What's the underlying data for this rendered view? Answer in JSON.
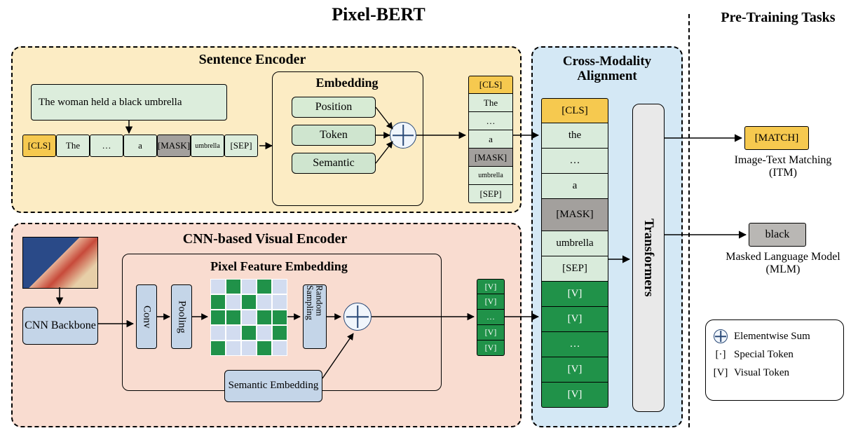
{
  "title": "Pixel-BERT",
  "pretrain_title": "Pre-Training Tasks",
  "colors": {
    "sentence_bg": "#fcecc4",
    "visual_bg": "#f9dcd0",
    "cross_bg": "#d4e8f5",
    "blue_block": "#c4d5e8",
    "light_green": "#dceddc",
    "mid_green": "#d9ebdb",
    "dark_green": "#209249",
    "cls": "#f6c94f",
    "mask": "#a3a09d",
    "match": "#f6c94f",
    "black_pred": "#b9b7b4",
    "grey_box": "#e6e6e6",
    "grid_bg": "#d2dcf0"
  },
  "sentence": {
    "title": "Sentence Encoder",
    "input_text": "The woman held a black umbrella",
    "tokens": [
      "[CLS]",
      "The",
      "…",
      "a",
      "[MASK]",
      "umbrella",
      "[SEP]"
    ],
    "embedding_title": "Embedding",
    "embedding_items": [
      "Position",
      "Token",
      "Semantic"
    ],
    "output_tokens": [
      "[CLS]",
      "The",
      "…",
      "a",
      "[MASK]",
      "umbrella",
      "[SEP]"
    ]
  },
  "visual": {
    "title": "CNN-based Visual Encoder",
    "cnn_label": "CNN Backbone",
    "conv": "Conv",
    "pool": "Pooling",
    "random_sampling": "Random Sampling",
    "pixel_title": "Pixel Feature Embedding",
    "semantic": "Semantic Embedding",
    "output_tokens": [
      "[V]",
      "[V]",
      "…",
      "[V]",
      "[V]"
    ]
  },
  "cross": {
    "title": "Cross-Modality Alignment",
    "transformers": "Transformers",
    "tokens": [
      "[CLS]",
      "the",
      "…",
      "a",
      "[MASK]",
      "umbrella",
      "[SEP]",
      "[V]",
      "[V]",
      "…",
      "[V]",
      "[V]"
    ]
  },
  "tasks": {
    "match": "[MATCH]",
    "itm_caption": "Image-Text Matching (ITM)",
    "mlm_pred": "black",
    "mlm_caption": "Masked Language Model (MLM)"
  },
  "legend": {
    "sum": "Elementwise Sum",
    "special": "Special Token",
    "visual": "Visual Token",
    "special_glyph": "[·]",
    "visual_glyph": "[V]"
  }
}
